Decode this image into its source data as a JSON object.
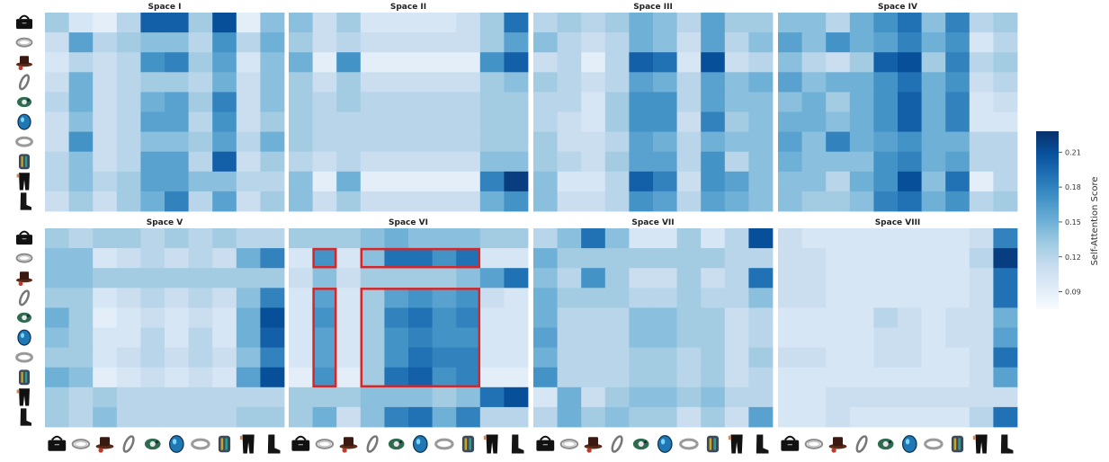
{
  "figure": {
    "colorbar": {
      "label": "Self-Attention Score",
      "ticks": [
        0.21,
        0.18,
        0.15,
        0.12,
        0.09
      ],
      "min": 0.075,
      "max": 0.228,
      "colors": [
        "#f7fbff",
        "#deebf7",
        "#c6dbef",
        "#9ecae1",
        "#6baed6",
        "#4292c6",
        "#2171b5",
        "#08519c",
        "#08306b"
      ]
    },
    "item_icons": [
      "handbag",
      "necklace",
      "hat",
      "bracelet",
      "brooch",
      "blue-bead",
      "silver-ring",
      "cuff",
      "pants",
      "boot"
    ]
  },
  "chart_data": [
    {
      "type": "heatmap",
      "title": "Space I",
      "values": [
        [
          0.13,
          0.1,
          0.09,
          0.12,
          0.2,
          0.2,
          0.13,
          0.21,
          0.09,
          0.14
        ],
        [
          0.11,
          0.16,
          0.12,
          0.13,
          0.14,
          0.14,
          0.12,
          0.17,
          0.12,
          0.15
        ],
        [
          0.1,
          0.12,
          0.11,
          0.12,
          0.17,
          0.18,
          0.13,
          0.16,
          0.1,
          0.14
        ],
        [
          0.11,
          0.15,
          0.11,
          0.12,
          0.13,
          0.13,
          0.12,
          0.15,
          0.11,
          0.14
        ],
        [
          0.12,
          0.15,
          0.11,
          0.12,
          0.15,
          0.16,
          0.13,
          0.18,
          0.11,
          0.14
        ],
        [
          0.11,
          0.14,
          0.11,
          0.12,
          0.16,
          0.16,
          0.12,
          0.17,
          0.11,
          0.13
        ],
        [
          0.11,
          0.17,
          0.11,
          0.12,
          0.14,
          0.14,
          0.13,
          0.16,
          0.12,
          0.15
        ],
        [
          0.12,
          0.14,
          0.11,
          0.12,
          0.16,
          0.16,
          0.12,
          0.2,
          0.11,
          0.13
        ],
        [
          0.12,
          0.14,
          0.12,
          0.13,
          0.16,
          0.16,
          0.14,
          0.14,
          0.12,
          0.12
        ],
        [
          0.11,
          0.13,
          0.11,
          0.13,
          0.15,
          0.18,
          0.12,
          0.16,
          0.11,
          0.13
        ]
      ]
    },
    {
      "type": "heatmap",
      "title": "Space II",
      "values": [
        [
          0.14,
          0.11,
          0.13,
          0.1,
          0.1,
          0.1,
          0.1,
          0.11,
          0.13,
          0.19
        ],
        [
          0.13,
          0.11,
          0.12,
          0.11,
          0.11,
          0.11,
          0.11,
          0.11,
          0.13,
          0.16
        ],
        [
          0.15,
          0.09,
          0.17,
          0.09,
          0.09,
          0.09,
          0.09,
          0.09,
          0.17,
          0.2
        ],
        [
          0.13,
          0.11,
          0.13,
          0.11,
          0.11,
          0.11,
          0.11,
          0.11,
          0.13,
          0.14
        ],
        [
          0.13,
          0.12,
          0.13,
          0.12,
          0.12,
          0.12,
          0.12,
          0.12,
          0.13,
          0.13
        ],
        [
          0.13,
          0.12,
          0.12,
          0.12,
          0.12,
          0.12,
          0.12,
          0.12,
          0.13,
          0.13
        ],
        [
          0.13,
          0.12,
          0.12,
          0.12,
          0.12,
          0.12,
          0.12,
          0.12,
          0.13,
          0.13
        ],
        [
          0.12,
          0.11,
          0.12,
          0.11,
          0.11,
          0.11,
          0.11,
          0.11,
          0.14,
          0.14
        ],
        [
          0.14,
          0.09,
          0.15,
          0.09,
          0.09,
          0.09,
          0.09,
          0.09,
          0.18,
          0.22
        ],
        [
          0.14,
          0.11,
          0.13,
          0.11,
          0.11,
          0.11,
          0.11,
          0.11,
          0.15,
          0.17
        ]
      ]
    },
    {
      "type": "heatmap",
      "title": "Space III",
      "values": [
        [
          0.12,
          0.13,
          0.12,
          0.13,
          0.15,
          0.14,
          0.12,
          0.16,
          0.13,
          0.13
        ],
        [
          0.14,
          0.12,
          0.11,
          0.12,
          0.15,
          0.14,
          0.11,
          0.16,
          0.12,
          0.14
        ],
        [
          0.11,
          0.12,
          0.09,
          0.12,
          0.2,
          0.19,
          0.1,
          0.21,
          0.11,
          0.12
        ],
        [
          0.13,
          0.12,
          0.11,
          0.12,
          0.16,
          0.15,
          0.12,
          0.16,
          0.14,
          0.15
        ],
        [
          0.12,
          0.12,
          0.1,
          0.13,
          0.17,
          0.17,
          0.12,
          0.16,
          0.14,
          0.14
        ],
        [
          0.12,
          0.11,
          0.1,
          0.13,
          0.17,
          0.17,
          0.11,
          0.18,
          0.13,
          0.14
        ],
        [
          0.13,
          0.11,
          0.11,
          0.12,
          0.16,
          0.15,
          0.12,
          0.15,
          0.14,
          0.14
        ],
        [
          0.13,
          0.12,
          0.11,
          0.13,
          0.16,
          0.16,
          0.12,
          0.17,
          0.12,
          0.14
        ],
        [
          0.14,
          0.1,
          0.1,
          0.12,
          0.2,
          0.18,
          0.11,
          0.17,
          0.16,
          0.14
        ],
        [
          0.14,
          0.11,
          0.11,
          0.12,
          0.17,
          0.16,
          0.12,
          0.16,
          0.15,
          0.14
        ]
      ]
    },
    {
      "type": "heatmap",
      "title": "Space IV",
      "values": [
        [
          0.14,
          0.14,
          0.12,
          0.15,
          0.17,
          0.19,
          0.14,
          0.18,
          0.12,
          0.13
        ],
        [
          0.16,
          0.14,
          0.17,
          0.15,
          0.16,
          0.18,
          0.15,
          0.17,
          0.1,
          0.12
        ],
        [
          0.14,
          0.12,
          0.11,
          0.13,
          0.2,
          0.21,
          0.13,
          0.18,
          0.12,
          0.13
        ],
        [
          0.16,
          0.14,
          0.15,
          0.15,
          0.17,
          0.19,
          0.15,
          0.17,
          0.11,
          0.12
        ],
        [
          0.14,
          0.15,
          0.13,
          0.15,
          0.17,
          0.2,
          0.15,
          0.18,
          0.1,
          0.11
        ],
        [
          0.15,
          0.15,
          0.14,
          0.15,
          0.17,
          0.2,
          0.15,
          0.18,
          0.1,
          0.1
        ],
        [
          0.16,
          0.14,
          0.18,
          0.15,
          0.16,
          0.17,
          0.15,
          0.15,
          0.12,
          0.12
        ],
        [
          0.15,
          0.14,
          0.14,
          0.14,
          0.17,
          0.18,
          0.15,
          0.16,
          0.12,
          0.12
        ],
        [
          0.14,
          0.14,
          0.12,
          0.15,
          0.17,
          0.21,
          0.14,
          0.19,
          0.09,
          0.12
        ],
        [
          0.14,
          0.13,
          0.13,
          0.14,
          0.18,
          0.19,
          0.15,
          0.17,
          0.12,
          0.13
        ]
      ]
    },
    {
      "type": "heatmap",
      "title": "Space V",
      "values": [
        [
          0.13,
          0.12,
          0.13,
          0.13,
          0.12,
          0.13,
          0.12,
          0.13,
          0.12,
          0.12
        ],
        [
          0.14,
          0.14,
          0.1,
          0.11,
          0.12,
          0.11,
          0.12,
          0.11,
          0.15,
          0.18
        ],
        [
          0.14,
          0.14,
          0.13,
          0.13,
          0.13,
          0.13,
          0.13,
          0.13,
          0.13,
          0.13
        ],
        [
          0.13,
          0.13,
          0.1,
          0.11,
          0.12,
          0.11,
          0.12,
          0.11,
          0.14,
          0.18
        ],
        [
          0.15,
          0.13,
          0.09,
          0.1,
          0.11,
          0.1,
          0.11,
          0.1,
          0.15,
          0.21
        ],
        [
          0.14,
          0.13,
          0.1,
          0.1,
          0.12,
          0.1,
          0.12,
          0.1,
          0.15,
          0.2
        ],
        [
          0.13,
          0.13,
          0.1,
          0.11,
          0.12,
          0.11,
          0.12,
          0.11,
          0.14,
          0.18
        ],
        [
          0.15,
          0.14,
          0.09,
          0.1,
          0.11,
          0.1,
          0.11,
          0.1,
          0.16,
          0.21
        ],
        [
          0.13,
          0.12,
          0.13,
          0.12,
          0.12,
          0.12,
          0.12,
          0.12,
          0.12,
          0.12
        ],
        [
          0.13,
          0.12,
          0.14,
          0.12,
          0.12,
          0.12,
          0.12,
          0.12,
          0.13,
          0.13
        ]
      ]
    },
    {
      "type": "heatmap",
      "title": "Space VI",
      "values": [
        [
          0.13,
          0.13,
          0.13,
          0.14,
          0.15,
          0.14,
          0.14,
          0.14,
          0.13,
          0.13
        ],
        [
          0.1,
          0.17,
          0.1,
          0.14,
          0.19,
          0.19,
          0.17,
          0.19,
          0.1,
          0.1
        ],
        [
          0.11,
          0.14,
          0.11,
          0.13,
          0.13,
          0.13,
          0.13,
          0.14,
          0.16,
          0.19
        ],
        [
          0.1,
          0.16,
          0.1,
          0.13,
          0.16,
          0.17,
          0.16,
          0.17,
          0.11,
          0.1
        ],
        [
          0.1,
          0.17,
          0.1,
          0.13,
          0.18,
          0.19,
          0.17,
          0.18,
          0.1,
          0.1
        ],
        [
          0.1,
          0.16,
          0.1,
          0.13,
          0.17,
          0.18,
          0.17,
          0.17,
          0.1,
          0.1
        ],
        [
          0.1,
          0.16,
          0.1,
          0.13,
          0.17,
          0.19,
          0.18,
          0.18,
          0.1,
          0.1
        ],
        [
          0.09,
          0.17,
          0.09,
          0.13,
          0.19,
          0.2,
          0.17,
          0.18,
          0.09,
          0.09
        ],
        [
          0.13,
          0.13,
          0.13,
          0.14,
          0.14,
          0.14,
          0.13,
          0.14,
          0.19,
          0.21
        ],
        [
          0.13,
          0.15,
          0.11,
          0.14,
          0.18,
          0.19,
          0.15,
          0.18,
          0.12,
          0.12
        ]
      ]
    },
    {
      "type": "heatmap",
      "title": "Space VII",
      "values": [
        [
          0.12,
          0.14,
          0.19,
          0.14,
          0.1,
          0.1,
          0.13,
          0.1,
          0.12,
          0.21
        ],
        [
          0.15,
          0.13,
          0.13,
          0.13,
          0.13,
          0.13,
          0.13,
          0.13,
          0.12,
          0.12
        ],
        [
          0.14,
          0.12,
          0.17,
          0.13,
          0.11,
          0.11,
          0.13,
          0.11,
          0.12,
          0.19
        ],
        [
          0.15,
          0.13,
          0.13,
          0.13,
          0.12,
          0.12,
          0.13,
          0.12,
          0.12,
          0.14
        ],
        [
          0.15,
          0.12,
          0.12,
          0.12,
          0.14,
          0.14,
          0.13,
          0.13,
          0.11,
          0.12
        ],
        [
          0.16,
          0.12,
          0.12,
          0.12,
          0.14,
          0.14,
          0.13,
          0.13,
          0.11,
          0.12
        ],
        [
          0.15,
          0.12,
          0.12,
          0.12,
          0.13,
          0.13,
          0.12,
          0.13,
          0.11,
          0.13
        ],
        [
          0.17,
          0.12,
          0.12,
          0.12,
          0.13,
          0.13,
          0.12,
          0.13,
          0.11,
          0.12
        ],
        [
          0.1,
          0.15,
          0.11,
          0.13,
          0.14,
          0.14,
          0.13,
          0.14,
          0.12,
          0.12
        ],
        [
          0.12,
          0.15,
          0.13,
          0.14,
          0.13,
          0.13,
          0.11,
          0.13,
          0.11,
          0.16
        ]
      ]
    },
    {
      "type": "heatmap",
      "title": "Space VIII",
      "values": [
        [
          0.11,
          0.1,
          0.1,
          0.1,
          0.1,
          0.1,
          0.1,
          0.1,
          0.11,
          0.18
        ],
        [
          0.11,
          0.11,
          0.1,
          0.1,
          0.1,
          0.1,
          0.1,
          0.1,
          0.12,
          0.22
        ],
        [
          0.11,
          0.11,
          0.1,
          0.1,
          0.1,
          0.1,
          0.1,
          0.1,
          0.11,
          0.19
        ],
        [
          0.11,
          0.11,
          0.1,
          0.1,
          0.1,
          0.1,
          0.1,
          0.1,
          0.11,
          0.19
        ],
        [
          0.1,
          0.1,
          0.1,
          0.1,
          0.12,
          0.11,
          0.1,
          0.11,
          0.11,
          0.15
        ],
        [
          0.1,
          0.1,
          0.1,
          0.1,
          0.11,
          0.11,
          0.1,
          0.11,
          0.11,
          0.16
        ],
        [
          0.11,
          0.11,
          0.1,
          0.1,
          0.11,
          0.11,
          0.1,
          0.1,
          0.11,
          0.19
        ],
        [
          0.1,
          0.1,
          0.1,
          0.1,
          0.1,
          0.1,
          0.1,
          0.1,
          0.11,
          0.16
        ],
        [
          0.1,
          0.1,
          0.11,
          0.11,
          0.11,
          0.11,
          0.11,
          0.11,
          0.11,
          0.11
        ],
        [
          0.1,
          0.1,
          0.11,
          0.1,
          0.1,
          0.1,
          0.1,
          0.1,
          0.12,
          0.19
        ]
      ]
    }
  ],
  "highlights": {
    "panel": "Space VI",
    "boxes": [
      {
        "rows": [
          1,
          1
        ],
        "cols": [
          1,
          1
        ]
      },
      {
        "rows": [
          1,
          1
        ],
        "cols": [
          3,
          7
        ]
      },
      {
        "rows": [
          3,
          7
        ],
        "cols": [
          1,
          1
        ]
      },
      {
        "rows": [
          3,
          7
        ],
        "cols": [
          3,
          7
        ]
      }
    ],
    "color": "#d62728"
  }
}
